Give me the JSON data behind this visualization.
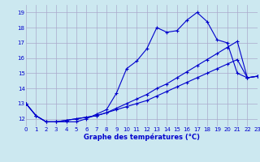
{
  "title": "Graphe des températures (°C)",
  "bg_color": "#cce8f0",
  "grid_color": "#aaaacc",
  "line_color": "#0000cc",
  "x_min": 0,
  "x_max": 23,
  "y_min": 11.5,
  "y_max": 19.5,
  "y_ticks": [
    12,
    13,
    14,
    15,
    16,
    17,
    18,
    19
  ],
  "line1": {
    "x": [
      0,
      1,
      2,
      3,
      4,
      5,
      6,
      7,
      8,
      9,
      10,
      11,
      12,
      13,
      14,
      15,
      16,
      17,
      18,
      19,
      20,
      21,
      22,
      23
    ],
    "y": [
      13.0,
      12.2,
      11.8,
      11.8,
      11.8,
      11.8,
      12.0,
      12.3,
      12.6,
      13.7,
      15.3,
      15.8,
      16.6,
      18.0,
      17.7,
      17.8,
      18.5,
      19.0,
      18.4,
      17.2,
      17.0,
      15.0,
      14.7,
      14.8
    ]
  },
  "line2": {
    "x": [
      0,
      1,
      2,
      3,
      4,
      5,
      6,
      7,
      8,
      9,
      10,
      11,
      12,
      13,
      14,
      15,
      16,
      17,
      18,
      19,
      20,
      21,
      22,
      23
    ],
    "y": [
      13.0,
      12.2,
      11.8,
      11.8,
      11.9,
      12.0,
      12.1,
      12.2,
      12.4,
      12.6,
      12.8,
      13.0,
      13.2,
      13.5,
      13.8,
      14.1,
      14.4,
      14.7,
      15.0,
      15.3,
      15.6,
      15.9,
      14.7,
      14.8
    ]
  },
  "line3": {
    "x": [
      0,
      1,
      2,
      3,
      4,
      5,
      6,
      7,
      8,
      9,
      10,
      11,
      12,
      13,
      14,
      15,
      16,
      17,
      18,
      19,
      20,
      21,
      22,
      23
    ],
    "y": [
      13.0,
      12.2,
      11.8,
      11.8,
      11.9,
      12.0,
      12.1,
      12.2,
      12.4,
      12.7,
      13.0,
      13.3,
      13.6,
      14.0,
      14.3,
      14.7,
      15.1,
      15.5,
      15.9,
      16.3,
      16.7,
      17.1,
      14.7,
      14.8
    ]
  }
}
